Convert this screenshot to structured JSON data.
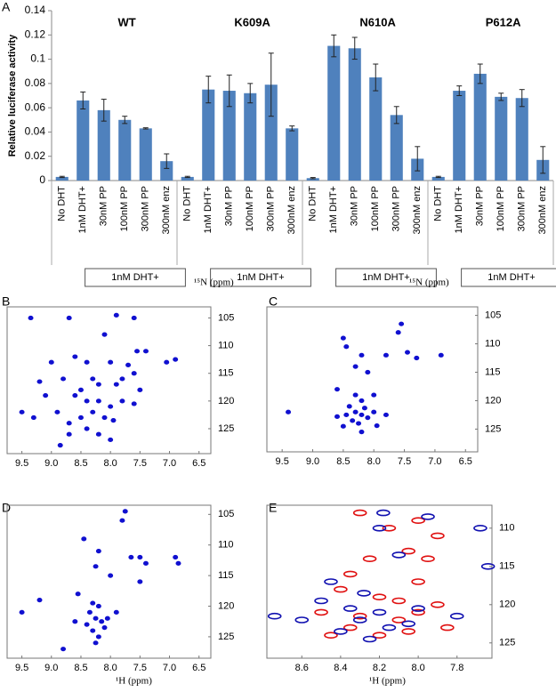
{
  "chart_data": [
    {
      "type": "bar",
      "panel_label": "A",
      "ylabel": "Relative luciferase activity",
      "color": "#4f81bd",
      "groups": [
        "WT",
        "K609A",
        "N610A",
        "P612A"
      ],
      "group_sublabels": [
        "1nM DHT+",
        "1nM DHT+",
        "1nM DHT+",
        "1nM DHT+"
      ],
      "categories": [
        "No DHT",
        "1nM DHT+",
        "30nM PP",
        "100nM PP",
        "300nM PP",
        "300nM enz",
        "No DHT",
        "1nM DHT+",
        "30nM PP",
        "100nM PP",
        "300nM PP",
        "300nM enz",
        "No DHT",
        "1nM DHT+",
        "30nM PP",
        "100nM PP",
        "300nM PP",
        "300nM enz",
        "No DHT",
        "1nM DHT+",
        "30nM PP",
        "100nM PP",
        "300nM PP",
        "300nM enz"
      ],
      "values": [
        0.003,
        0.066,
        0.058,
        0.05,
        0.043,
        0.016,
        0.003,
        0.075,
        0.074,
        0.072,
        0.079,
        0.043,
        0.002,
        0.111,
        0.109,
        0.085,
        0.054,
        0.018,
        0.003,
        0.074,
        0.088,
        0.069,
        0.068,
        0.017
      ],
      "errors": [
        0.0005,
        0.007,
        0.009,
        0.003,
        0.0005,
        0.006,
        0.0005,
        0.011,
        0.013,
        0.008,
        0.026,
        0.002,
        0.0005,
        0.009,
        0.009,
        0.011,
        0.007,
        0.01,
        0.0005,
        0.004,
        0.008,
        0.003,
        0.007,
        0.011
      ],
      "ylim": [
        0,
        0.14
      ],
      "yticks": [
        0,
        0.02,
        0.04,
        0.06,
        0.08,
        0.1,
        0.12,
        0.14
      ]
    },
    {
      "type": "scatter",
      "panel_label": "B",
      "ylabel": "¹⁵N (ppm)",
      "xlim": [
        9.75,
        6.3
      ],
      "ylim": [
        129.5,
        103
      ],
      "xticks": [
        9.5,
        {
          "value": 9,
          "label": "9.0"
        },
        8.5,
        {
          "value": 8,
          "label": "8.0"
        },
        7.5,
        {
          "value": 7,
          "label": "7.0"
        },
        6.5
      ],
      "yticks": [
        105,
        110,
        115,
        120,
        125
      ],
      "series": [
        {
          "color": "#1010d0",
          "x": [
            9.35,
            8.7,
            7.9,
            7.6,
            8.1,
            7.55,
            7.4,
            7.05,
            6.9,
            9.0,
            8.6,
            8.4,
            8.0,
            7.7,
            7.6,
            8.8,
            8.3,
            8.2,
            7.9,
            7.5,
            9.1,
            8.6,
            8.4,
            8.2,
            8.0,
            7.8,
            9.5,
            9.3,
            8.9,
            8.5,
            8.3,
            8.1,
            7.95,
            8.7,
            8.4,
            8.2,
            8.0,
            8.85,
            8.7,
            7.6,
            7.8,
            8.5,
            9.2
          ],
          "values": [
            105,
            105,
            104.5,
            105,
            108,
            111,
            111,
            113,
            112.5,
            113,
            112,
            113,
            113,
            113.5,
            115,
            116,
            116,
            117,
            117,
            118,
            119,
            119,
            120,
            120,
            121,
            120,
            122,
            123,
            122,
            123,
            122,
            123,
            123.5,
            124,
            125,
            126,
            127,
            128,
            126,
            120.5,
            116,
            118,
            116.5
          ]
        }
      ]
    },
    {
      "type": "scatter",
      "panel_label": "C",
      "ylabel": "¹⁵N (ppm)",
      "xlim": [
        9.75,
        6.3
      ],
      "ylim": [
        129,
        103.5
      ],
      "xticks": [
        9.5,
        {
          "value": 9,
          "label": "9.0"
        },
        8.5,
        {
          "value": 8,
          "label": "8.0"
        },
        7.5,
        {
          "value": 7,
          "label": "7.0"
        },
        6.5
      ],
      "yticks": [
        105,
        110,
        115,
        120,
        125
      ],
      "series": [
        {
          "color": "#1010d0",
          "x": [
            7.55,
            7.6,
            8.5,
            8.45,
            8.2,
            7.8,
            7.45,
            7.3,
            6.9,
            8.3,
            8.1,
            8.6,
            8.3,
            8.2,
            8.4,
            8.3,
            8.2,
            8.1,
            8.0,
            8.35,
            8.25,
            8.5,
            8.2,
            9.4,
            8.0,
            7.8,
            8.6,
            8.15,
            8.45,
            7.95
          ],
          "values": [
            106.5,
            108,
            109,
            110.5,
            112,
            112,
            111.5,
            112.5,
            112,
            114,
            115,
            118,
            119,
            120,
            121,
            122,
            122.5,
            123,
            122,
            123.5,
            124,
            124.5,
            125.5,
            122,
            119,
            122.5,
            122.8,
            121.3,
            122.5,
            124.4
          ]
        }
      ]
    },
    {
      "type": "scatter",
      "panel_label": "D",
      "xlabel": "¹H (ppm)",
      "xlim": [
        9.75,
        6.3
      ],
      "ylim": [
        128.5,
        103.5
      ],
      "xticks": [
        9.5,
        {
          "value": 9,
          "label": "9.0"
        },
        8.5,
        {
          "value": 8,
          "label": "8.0"
        },
        7.5,
        {
          "value": 7,
          "label": "7.0"
        },
        6.5
      ],
      "yticks": [
        105,
        110,
        115,
        120,
        125
      ],
      "series": [
        {
          "color": "#1010d0",
          "x": [
            7.75,
            7.8,
            8.45,
            8.2,
            7.65,
            7.5,
            7.4,
            6.9,
            6.85,
            8.25,
            8.0,
            7.5,
            8.55,
            8.3,
            8.2,
            8.35,
            8.25,
            8.15,
            8.05,
            8.4,
            8.3,
            8.2,
            8.25,
            8.8,
            9.5,
            9.2,
            8.6,
            8.1,
            7.9
          ],
          "values": [
            104.5,
            106,
            109,
            111,
            112,
            112,
            113,
            112,
            113,
            113.5,
            115,
            116,
            118,
            119.5,
            120,
            121,
            122,
            122.5,
            122,
            123,
            124,
            125,
            126,
            127,
            121,
            119,
            122.5,
            123.5,
            121
          ]
        }
      ]
    },
    {
      "type": "scatter",
      "panel_label": "E",
      "xlabel": "¹H (ppm)",
      "xlim": [
        8.78,
        7.62
      ],
      "ylim": [
        127,
        107
      ],
      "xticks": [
        8.6,
        8.4,
        8.2,
        {
          "value": 8,
          "label": "8.0"
        },
        7.8
      ],
      "yticks": [
        110,
        115,
        120,
        125
      ],
      "series": [
        {
          "color": "#e01010",
          "x": [
            8.3,
            8.0,
            8.15,
            7.9,
            8.05,
            8.25,
            7.95,
            8.35,
            8.0,
            8.4,
            8.2,
            8.1,
            7.9,
            8.5,
            8.3,
            8.1,
            8.0,
            8.35,
            8.2,
            8.45,
            8.05,
            7.85
          ],
          "values": [
            108,
            109,
            110,
            111,
            113,
            114,
            114,
            116,
            117,
            118,
            119,
            119.5,
            120,
            121,
            121.5,
            122,
            121,
            123,
            124,
            124,
            123.5,
            123
          ]
        },
        {
          "color": "#1010b0",
          "x": [
            8.18,
            7.95,
            8.2,
            7.68,
            8.1,
            7.64,
            8.45,
            8.28,
            8.5,
            8.35,
            8.2,
            8.0,
            8.3,
            8.6,
            8.74,
            8.15,
            8.4,
            8.25,
            8.05,
            7.8
          ],
          "values": [
            108,
            108.5,
            110,
            110,
            113.5,
            115,
            117,
            118.5,
            119.5,
            120.5,
            121,
            120.5,
            122,
            122,
            121.5,
            123,
            123.5,
            124.5,
            122.5,
            121.5
          ]
        }
      ]
    }
  ]
}
